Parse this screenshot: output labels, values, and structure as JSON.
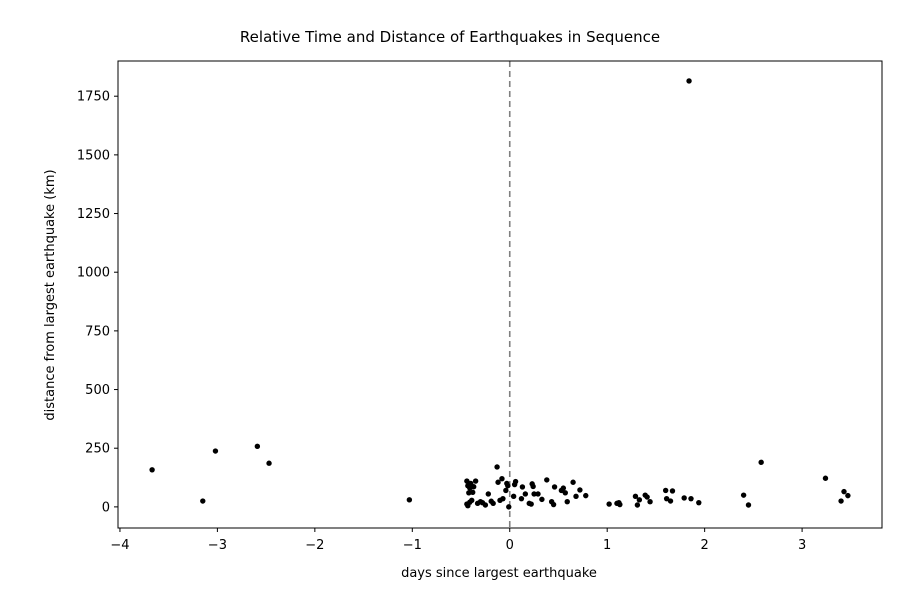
{
  "chart_data": {
    "type": "scatter",
    "title": "Relative Time and Distance of Earthquakes in Sequence",
    "xlabel": "days since largest earthquake",
    "ylabel": "distance from largest earthquake (km)",
    "xlim": [
      -4.02,
      3.82
    ],
    "ylim": [
      -90,
      1900
    ],
    "xticks": [
      -4,
      -3,
      -2,
      -1,
      0,
      1,
      2,
      3
    ],
    "xtick_labels": [
      "−4",
      "−3",
      "−2",
      "−1",
      "0",
      "1",
      "2",
      "3"
    ],
    "yticks": [
      0,
      250,
      500,
      750,
      1000,
      1250,
      1500,
      1750
    ],
    "ytick_labels": [
      "0",
      "250",
      "500",
      "750",
      "1000",
      "1250",
      "1500",
      "1750"
    ],
    "grid": false,
    "reference_line": {
      "x": 0,
      "style": "dashed",
      "color": "#808080"
    },
    "marker_color": "#000000",
    "points": [
      {
        "x": -3.67,
        "y": 158
      },
      {
        "x": -3.15,
        "y": 25
      },
      {
        "x": -3.02,
        "y": 238
      },
      {
        "x": -2.59,
        "y": 258
      },
      {
        "x": -2.47,
        "y": 186
      },
      {
        "x": -1.03,
        "y": 30
      },
      {
        "x": -0.44,
        "y": 110
      },
      {
        "x": -0.43,
        "y": 90
      },
      {
        "x": -0.42,
        "y": 60
      },
      {
        "x": -0.41,
        "y": 80
      },
      {
        "x": -0.4,
        "y": 100
      },
      {
        "x": -0.44,
        "y": 12
      },
      {
        "x": -0.43,
        "y": 5
      },
      {
        "x": -0.41,
        "y": 20
      },
      {
        "x": -0.39,
        "y": 28
      },
      {
        "x": -0.38,
        "y": 62
      },
      {
        "x": -0.37,
        "y": 86
      },
      {
        "x": -0.35,
        "y": 110
      },
      {
        "x": -0.33,
        "y": 15
      },
      {
        "x": -0.3,
        "y": 22
      },
      {
        "x": -0.28,
        "y": 18
      },
      {
        "x": -0.25,
        "y": 8
      },
      {
        "x": -0.22,
        "y": 55
      },
      {
        "x": -0.19,
        "y": 24
      },
      {
        "x": -0.17,
        "y": 15
      },
      {
        "x": -0.13,
        "y": 170
      },
      {
        "x": -0.12,
        "y": 105
      },
      {
        "x": -0.1,
        "y": 28
      },
      {
        "x": -0.08,
        "y": 120
      },
      {
        "x": -0.07,
        "y": 35
      },
      {
        "x": -0.04,
        "y": 70
      },
      {
        "x": -0.03,
        "y": 100
      },
      {
        "x": -0.02,
        "y": 90
      },
      {
        "x": -0.01,
        "y": 0
      },
      {
        "x": 0.04,
        "y": 45
      },
      {
        "x": 0.05,
        "y": 95
      },
      {
        "x": 0.06,
        "y": 108
      },
      {
        "x": 0.12,
        "y": 35
      },
      {
        "x": 0.13,
        "y": 85
      },
      {
        "x": 0.16,
        "y": 55
      },
      {
        "x": 0.2,
        "y": 15
      },
      {
        "x": 0.22,
        "y": 12
      },
      {
        "x": 0.23,
        "y": 98
      },
      {
        "x": 0.24,
        "y": 87
      },
      {
        "x": 0.25,
        "y": 55
      },
      {
        "x": 0.29,
        "y": 55
      },
      {
        "x": 0.33,
        "y": 32
      },
      {
        "x": 0.38,
        "y": 115
      },
      {
        "x": 0.43,
        "y": 22
      },
      {
        "x": 0.45,
        "y": 10
      },
      {
        "x": 0.46,
        "y": 85
      },
      {
        "x": 0.53,
        "y": 70
      },
      {
        "x": 0.55,
        "y": 80
      },
      {
        "x": 0.57,
        "y": 60
      },
      {
        "x": 0.59,
        "y": 22
      },
      {
        "x": 0.65,
        "y": 105
      },
      {
        "x": 0.68,
        "y": 45
      },
      {
        "x": 0.72,
        "y": 72
      },
      {
        "x": 0.78,
        "y": 48
      },
      {
        "x": 1.02,
        "y": 12
      },
      {
        "x": 1.1,
        "y": 15
      },
      {
        "x": 1.12,
        "y": 18
      },
      {
        "x": 1.13,
        "y": 10
      },
      {
        "x": 1.29,
        "y": 45
      },
      {
        "x": 1.31,
        "y": 8
      },
      {
        "x": 1.33,
        "y": 30
      },
      {
        "x": 1.39,
        "y": 50
      },
      {
        "x": 1.41,
        "y": 42
      },
      {
        "x": 1.44,
        "y": 22
      },
      {
        "x": 1.6,
        "y": 70
      },
      {
        "x": 1.61,
        "y": 35
      },
      {
        "x": 1.65,
        "y": 25
      },
      {
        "x": 1.67,
        "y": 68
      },
      {
        "x": 1.79,
        "y": 38
      },
      {
        "x": 1.84,
        "y": 1815
      },
      {
        "x": 1.86,
        "y": 35
      },
      {
        "x": 1.94,
        "y": 18
      },
      {
        "x": 2.4,
        "y": 50
      },
      {
        "x": 2.45,
        "y": 8
      },
      {
        "x": 2.58,
        "y": 190
      },
      {
        "x": 3.24,
        "y": 122
      },
      {
        "x": 3.4,
        "y": 25
      },
      {
        "x": 3.43,
        "y": 65
      },
      {
        "x": 3.47,
        "y": 48
      }
    ]
  }
}
